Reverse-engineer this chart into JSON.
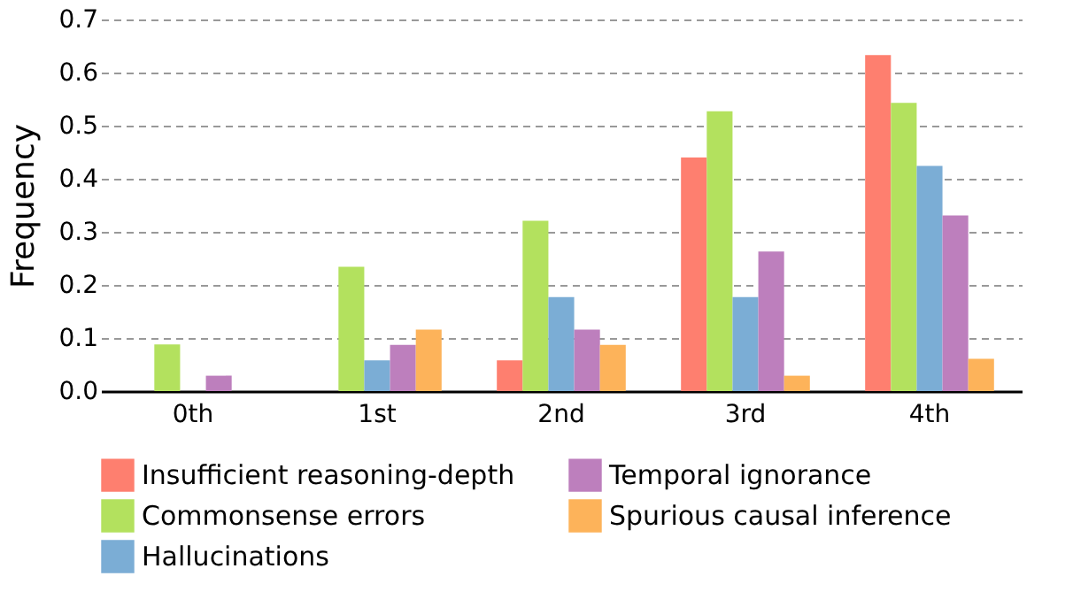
{
  "chart_data": {
    "type": "bar",
    "ylabel": "Frequency",
    "categories": [
      "0th",
      "1st",
      "2nd",
      "3rd",
      "4th"
    ],
    "series": [
      {
        "name": "Insufficient reasoning-depth",
        "color": "#fe7f6f",
        "values": [
          0,
          0,
          0.058,
          0.44,
          0.633
        ]
      },
      {
        "name": "Commonsense errors",
        "color": "#b3e15e",
        "values": [
          0.088,
          0.234,
          0.321,
          0.527,
          0.543
        ]
      },
      {
        "name": "Hallucinations",
        "color": "#7badd5",
        "values": [
          0,
          0.058,
          0.177,
          0.177,
          0.424
        ]
      },
      {
        "name": "Temporal ignorance",
        "color": "#bd7fbd",
        "values": [
          0.029,
          0.087,
          0.116,
          0.263,
          0.331
        ]
      },
      {
        "name": "Spurious causal inference",
        "color": "#fdb35a",
        "values": [
          0,
          0.116,
          0.087,
          0.029,
          0.061
        ]
      }
    ],
    "ylim": [
      0,
      0.7
    ],
    "yticks": [
      {
        "value": 0,
        "label": "0.0"
      },
      {
        "value": 0.1,
        "label": "0.1"
      },
      {
        "value": 0.2,
        "label": "0.2"
      },
      {
        "value": 0.3,
        "label": "0.3"
      },
      {
        "value": 0.4,
        "label": "0.4"
      },
      {
        "value": 0.5,
        "label": "0.5"
      },
      {
        "value": 0.6,
        "label": "0.6"
      },
      {
        "value": 0.7,
        "label": "0.7"
      }
    ],
    "grid": "y",
    "legend": "bottom"
  }
}
